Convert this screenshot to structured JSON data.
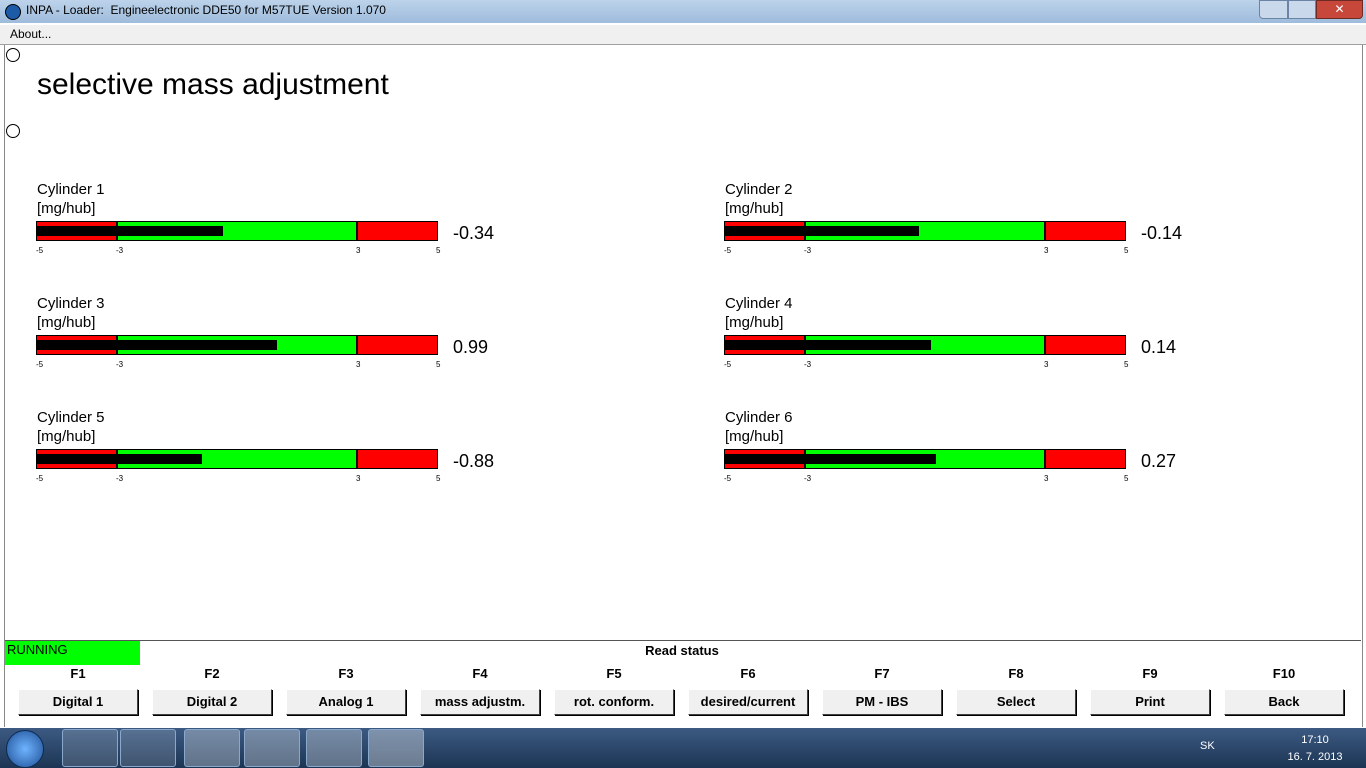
{
  "window": {
    "title": "INPA - Loader:  Engineelectronic DDE50 for M57TUE Version 1.070"
  },
  "menu": {
    "items": [
      "About..."
    ]
  },
  "content": {
    "heading": "selective mass adjustment",
    "scale": {
      "min": -5,
      "max": 5,
      "ticks": [
        -5,
        -3,
        3,
        5
      ],
      "zone_colors": [
        "#ff0000",
        "#00ff00",
        "#ff0000"
      ],
      "bar_color": "#000000"
    },
    "gauges": [
      {
        "label": "Cylinder 1",
        "unit": "[mg/hub]",
        "value": -0.34
      },
      {
        "label": "Cylinder 2",
        "unit": "[mg/hub]",
        "value": -0.14
      },
      {
        "label": "Cylinder 3",
        "unit": "[mg/hub]",
        "value": 0.99
      },
      {
        "label": "Cylinder 4",
        "unit": "[mg/hub]",
        "value": 0.14
      },
      {
        "label": "Cylinder 5",
        "unit": "[mg/hub]",
        "value": -0.88
      },
      {
        "label": "Cylinder 6",
        "unit": "[mg/hub]",
        "value": 0.27
      }
    ]
  },
  "status": {
    "state": "RUNNING",
    "message": "Read status"
  },
  "function_keys": [
    {
      "key": "F1",
      "label": "Digital 1"
    },
    {
      "key": "F2",
      "label": "Digital 2"
    },
    {
      "key": "F3",
      "label": "Analog 1"
    },
    {
      "key": "F4",
      "label": "mass adjustm."
    },
    {
      "key": "F5",
      "label": "rot. conform."
    },
    {
      "key": "F6",
      "label": "desired/current"
    },
    {
      "key": "F7",
      "label": "PM - IBS"
    },
    {
      "key": "F8",
      "label": "Select"
    },
    {
      "key": "F9",
      "label": "Print"
    },
    {
      "key": "F10",
      "label": "Back"
    }
  ],
  "taskbar": {
    "language": "SK",
    "time": "17:10",
    "date": "16. 7. 2013"
  }
}
